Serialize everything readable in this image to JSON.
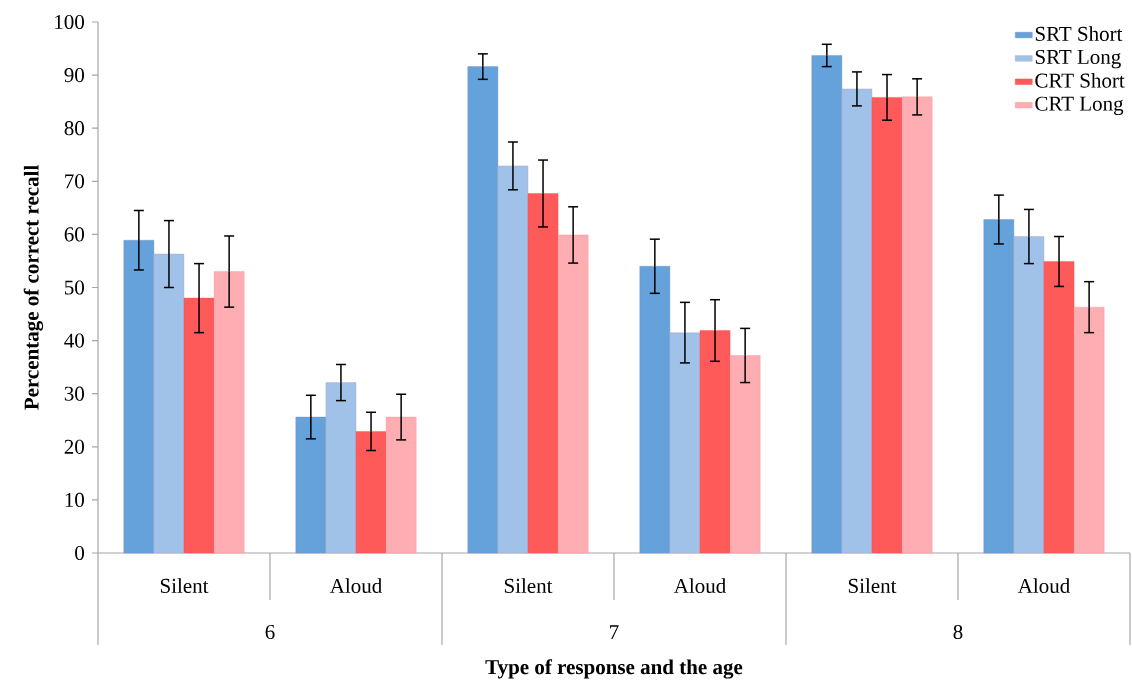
{
  "chart_data": {
    "type": "bar",
    "xlabel": "Type of response and the age",
    "ylabel": "Percentage  of correct recall",
    "categories": [
      "Silent",
      "Aloud",
      "Silent",
      "Aloud",
      "Silent",
      "Aloud"
    ],
    "annotations": [
      "6",
      "7",
      "8"
    ],
    "series": [
      {
        "name": "SRT Short",
        "color": "#65a2dc",
        "values": [
          58.9,
          25.6,
          91.6,
          54.0,
          93.7,
          62.8
        ],
        "errors": [
          5.6,
          4.1,
          2.4,
          5.1,
          2.1,
          4.6
        ]
      },
      {
        "name": "SRT Long",
        "color": "#a0c2e8",
        "values": [
          56.3,
          32.1,
          72.9,
          41.5,
          87.4,
          59.6
        ],
        "errors": [
          6.3,
          3.4,
          4.5,
          5.7,
          3.2,
          5.1
        ]
      },
      {
        "name": "CRT Short",
        "color": "#fe5a5a",
        "values": [
          48.0,
          22.9,
          67.7,
          41.9,
          85.8,
          54.9
        ],
        "errors": [
          6.5,
          3.6,
          6.3,
          5.8,
          4.3,
          4.7
        ]
      },
      {
        "name": "CRT Long",
        "color": "#feadb3",
        "values": [
          53.0,
          25.6,
          59.9,
          37.2,
          85.9,
          46.3
        ],
        "errors": [
          6.7,
          4.3,
          5.3,
          5.1,
          3.4,
          4.8
        ]
      }
    ],
    "ylim": [
      0,
      100
    ],
    "yticks": [
      0,
      10,
      20,
      30,
      40,
      50,
      60,
      70,
      80,
      90,
      100
    ],
    "legend": "top right"
  }
}
